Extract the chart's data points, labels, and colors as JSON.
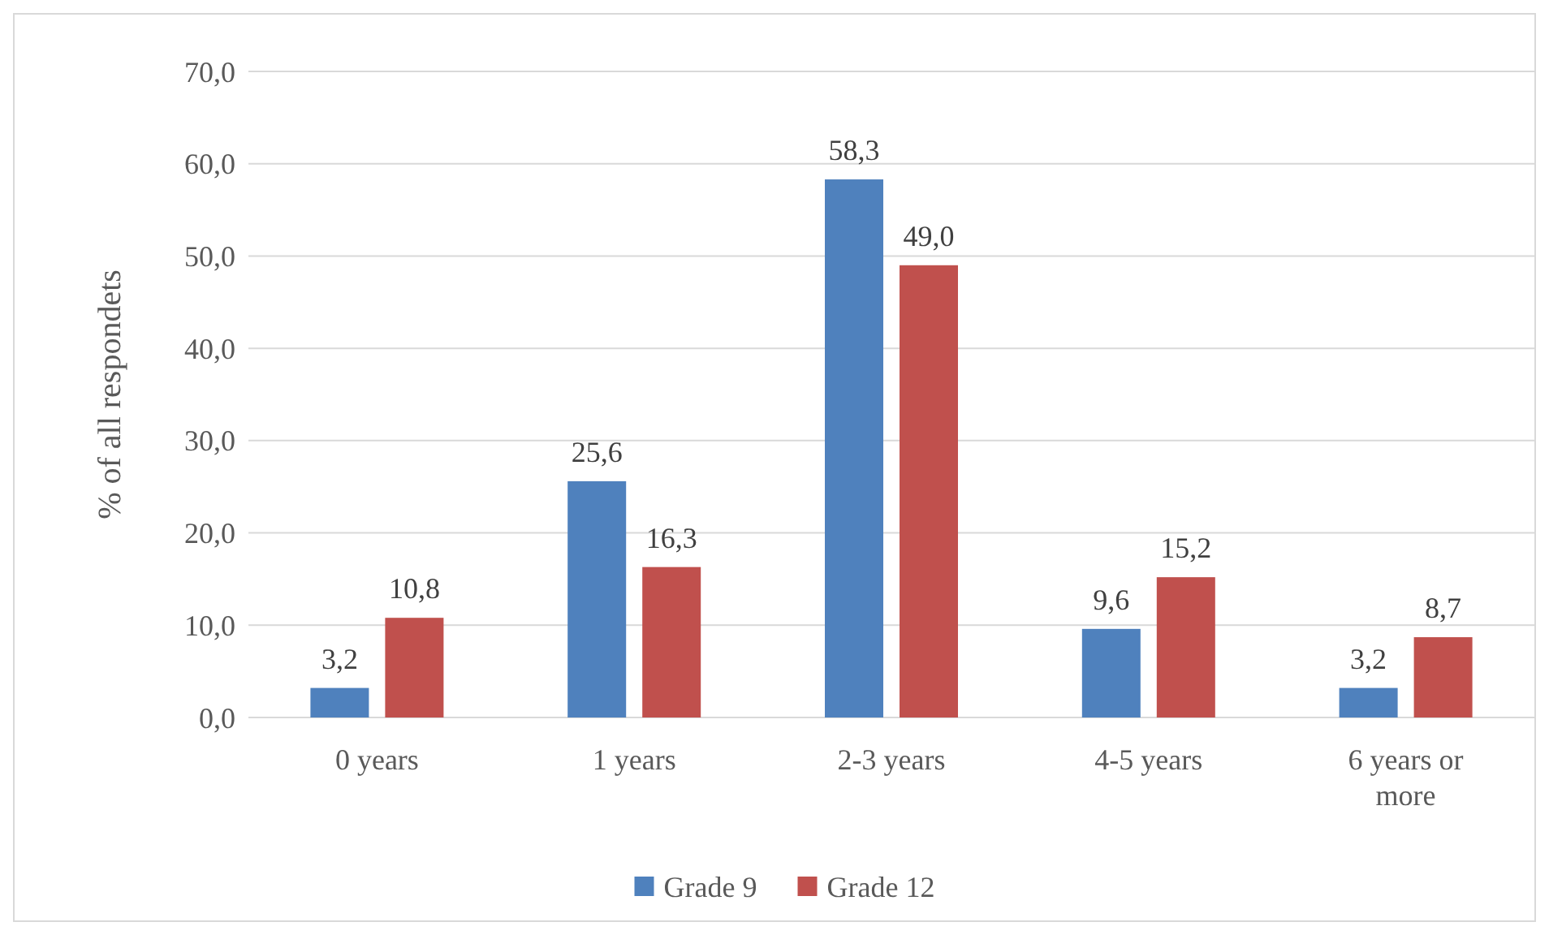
{
  "chart_data": {
    "type": "bar",
    "ylabel": "% of all respondets",
    "categories": [
      "0 years",
      "1 years",
      "2-3 years",
      "4-5 years",
      "6 years or more"
    ],
    "series": [
      {
        "name": "Grade 9",
        "color": "#4f81bd",
        "values": [
          3.2,
          25.6,
          58.3,
          9.6,
          3.2
        ],
        "value_labels": [
          "3,2",
          "25,6",
          "58,3",
          "9,6",
          "3,2"
        ]
      },
      {
        "name": "Grade 12",
        "color": "#c0504d",
        "values": [
          10.8,
          16.3,
          49.0,
          15.2,
          8.7
        ],
        "value_labels": [
          "10,8",
          "16,3",
          "49,0",
          "15,2",
          "8,7"
        ]
      }
    ],
    "ylim": [
      0,
      70
    ],
    "yticks": [
      {
        "value": 0,
        "label": "0,0"
      },
      {
        "value": 10,
        "label": "10,0"
      },
      {
        "value": 20,
        "label": "20,0"
      },
      {
        "value": 30,
        "label": "30,0"
      },
      {
        "value": 40,
        "label": "40,0"
      },
      {
        "value": 50,
        "label": "50,0"
      },
      {
        "value": 60,
        "label": "60,0"
      },
      {
        "value": 70,
        "label": "70,0"
      }
    ],
    "grid": "y",
    "legend": "bottom"
  }
}
